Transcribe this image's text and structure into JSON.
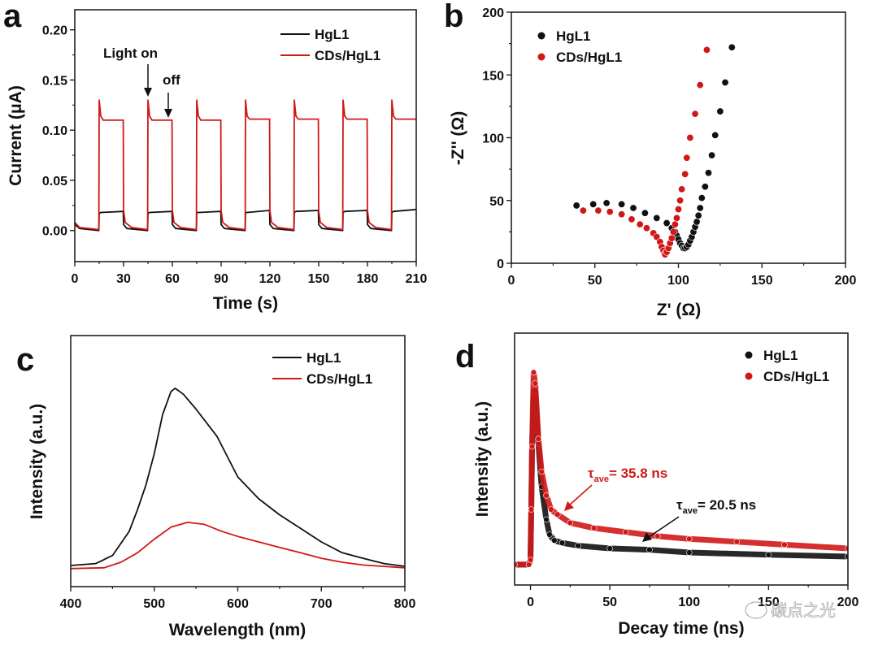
{
  "colors": {
    "hgl1": "#111111",
    "cds": "#d01818"
  },
  "watermark": "碳点之光",
  "chart_data": [
    {
      "panel": "a",
      "type": "line",
      "xlabel": "Time (s)",
      "ylabel": "Current (μA)",
      "xlim": [
        0,
        210
      ],
      "ylim": [
        -0.031,
        0.22
      ],
      "xticks": [
        0,
        30,
        60,
        90,
        120,
        150,
        180,
        210
      ],
      "xtick_labels": [
        "0",
        "30",
        "60",
        "90",
        "120",
        "150",
        "180",
        "210"
      ],
      "yticks": [
        0,
        0.05,
        0.1,
        0.15,
        0.2
      ],
      "ytick_labels": [
        "0.00",
        "0.05",
        "0.10",
        "0.15",
        "0.20"
      ],
      "legend_position": "top-right",
      "annotations": [
        {
          "text": "Light on",
          "x": 45
        },
        {
          "text": "off",
          "x": 60
        }
      ],
      "series": [
        {
          "name": "HgL1",
          "color": "#111111",
          "points": [
            [
              0,
              0.006
            ],
            [
              3,
              0.002
            ],
            [
              14.8,
              0
            ],
            [
              15,
              0.017
            ],
            [
              16,
              0.018
            ],
            [
              29.8,
              0.019
            ],
            [
              30,
              0.006
            ],
            [
              32,
              0.002
            ],
            [
              44.8,
              0
            ],
            [
              45,
              0.017
            ],
            [
              46,
              0.018
            ],
            [
              59.8,
              0.019
            ],
            [
              60,
              0.006
            ],
            [
              62,
              0.002
            ],
            [
              74.8,
              0
            ],
            [
              75,
              0.018
            ],
            [
              76,
              0.018
            ],
            [
              89.8,
              0.019
            ],
            [
              90,
              0.006
            ],
            [
              92,
              0.002
            ],
            [
              104.8,
              0
            ],
            [
              105,
              0.018
            ],
            [
              106,
              0.018
            ],
            [
              119.8,
              0.02
            ],
            [
              120,
              0.006
            ],
            [
              122,
              0.002
            ],
            [
              134.8,
              0
            ],
            [
              135,
              0.018
            ],
            [
              136,
              0.019
            ],
            [
              149.8,
              0.02
            ],
            [
              150,
              0.006
            ],
            [
              152,
              0.002
            ],
            [
              164.8,
              0
            ],
            [
              165,
              0.018
            ],
            [
              166,
              0.019
            ],
            [
              179.8,
              0.02
            ],
            [
              180,
              0.006
            ],
            [
              182,
              0.002
            ],
            [
              194.8,
              0
            ],
            [
              195,
              0.018
            ],
            [
              196,
              0.019
            ],
            [
              210,
              0.021
            ]
          ]
        },
        {
          "name": "CDs/HgL1",
          "color": "#d01818",
          "points": [
            [
              0,
              0.008
            ],
            [
              3,
              0.003
            ],
            [
              14.8,
              0.001
            ],
            [
              15,
              0.13
            ],
            [
              16,
              0.114
            ],
            [
              17.5,
              0.11
            ],
            [
              29.8,
              0.11
            ],
            [
              30,
              0.02
            ],
            [
              31,
              0.008
            ],
            [
              35,
              0.003
            ],
            [
              44.8,
              0.001
            ],
            [
              45,
              0.13
            ],
            [
              46,
              0.114
            ],
            [
              47.5,
              0.11
            ],
            [
              59.8,
              0.11
            ],
            [
              60,
              0.02
            ],
            [
              61,
              0.008
            ],
            [
              65,
              0.003
            ],
            [
              74.8,
              0.001
            ],
            [
              75,
              0.13
            ],
            [
              76,
              0.114
            ],
            [
              77.5,
              0.11
            ],
            [
              89.8,
              0.11
            ],
            [
              90,
              0.02
            ],
            [
              91,
              0.008
            ],
            [
              95,
              0.003
            ],
            [
              104.8,
              0.001
            ],
            [
              105,
              0.13
            ],
            [
              106,
              0.114
            ],
            [
              107.5,
              0.111
            ],
            [
              119.8,
              0.111
            ],
            [
              120,
              0.02
            ],
            [
              121,
              0.008
            ],
            [
              125,
              0.003
            ],
            [
              134.8,
              0.001
            ],
            [
              135,
              0.13
            ],
            [
              136,
              0.114
            ],
            [
              137.5,
              0.111
            ],
            [
              149.8,
              0.111
            ],
            [
              150,
              0.02
            ],
            [
              151,
              0.008
            ],
            [
              155,
              0.003
            ],
            [
              164.8,
              0.001
            ],
            [
              165,
              0.13
            ],
            [
              166,
              0.114
            ],
            [
              167.5,
              0.111
            ],
            [
              179.8,
              0.111
            ],
            [
              180,
              0.02
            ],
            [
              181,
              0.008
            ],
            [
              185,
              0.003
            ],
            [
              194.8,
              0.001
            ],
            [
              195,
              0.13
            ],
            [
              196,
              0.114
            ],
            [
              197.5,
              0.111
            ],
            [
              210,
              0.111
            ]
          ]
        }
      ]
    },
    {
      "panel": "b",
      "type": "scatter",
      "xlabel": "Z' (Ω)",
      "ylabel": "-Z'' (Ω)",
      "xlim": [
        0,
        200
      ],
      "ylim": [
        0,
        200
      ],
      "xticks": [
        0,
        50,
        100,
        150,
        200
      ],
      "xtick_labels": [
        "0",
        "50",
        "100",
        "150",
        "200"
      ],
      "yticks": [
        0,
        50,
        100,
        150,
        200
      ],
      "ytick_labels": [
        "0",
        "50",
        "100",
        "150",
        "200"
      ],
      "legend_position": "top-left",
      "series": [
        {
          "name": "HgL1",
          "color": "#111111",
          "points": [
            [
              39,
              46
            ],
            [
              49,
              47
            ],
            [
              57,
              48
            ],
            [
              66,
              47
            ],
            [
              73,
              44
            ],
            [
              80,
              40
            ],
            [
              87,
              36
            ],
            [
              93,
              32
            ],
            [
              96,
              28
            ],
            [
              98,
              25
            ],
            [
              99,
              22
            ],
            [
              100,
              19
            ],
            [
              101,
              16
            ],
            [
              102,
              14
            ],
            [
              103,
              12
            ],
            [
              104,
              12
            ],
            [
              105,
              13
            ],
            [
              106,
              15
            ],
            [
              107,
              18
            ],
            [
              108,
              21
            ],
            [
              109,
              25
            ],
            [
              110,
              29
            ],
            [
              111,
              33
            ],
            [
              112,
              38
            ],
            [
              113,
              44
            ],
            [
              114,
              52
            ],
            [
              116,
              61
            ],
            [
              118,
              72
            ],
            [
              120,
              86
            ],
            [
              122,
              102
            ],
            [
              125,
              121
            ],
            [
              128,
              144
            ],
            [
              132,
              172
            ]
          ]
        },
        {
          "name": "CDs/HgL1",
          "color": "#d01818",
          "points": [
            [
              43,
              42
            ],
            [
              52,
              42
            ],
            [
              59,
              41
            ],
            [
              66,
              39
            ],
            [
              72,
              35
            ],
            [
              77,
              31
            ],
            [
              81,
              28
            ],
            [
              85,
              24
            ],
            [
              87,
              21
            ],
            [
              89,
              17
            ],
            [
              90,
              13
            ],
            [
              91,
              10
            ],
            [
              92,
              8
            ],
            [
              92,
              7
            ],
            [
              93,
              9
            ],
            [
              94,
              12
            ],
            [
              95,
              16
            ],
            [
              96,
              20
            ],
            [
              97,
              25
            ],
            [
              98,
              31
            ],
            [
              99,
              36
            ],
            [
              100,
              43
            ],
            [
              101,
              50
            ],
            [
              102,
              59
            ],
            [
              104,
              71
            ],
            [
              105,
              84
            ],
            [
              107,
              100
            ],
            [
              110,
              119
            ],
            [
              113,
              142
            ],
            [
              117,
              170
            ]
          ]
        }
      ]
    },
    {
      "panel": "c",
      "type": "line",
      "xlabel": "Wavelength (nm)",
      "ylabel": "Intensity (a.u.)",
      "xlim": [
        400,
        800
      ],
      "ylim": [
        0,
        100
      ],
      "xticks": [
        400,
        500,
        600,
        700,
        800
      ],
      "xtick_labels": [
        "400",
        "500",
        "600",
        "700",
        "800"
      ],
      "yticks": [],
      "ytick_labels": [],
      "legend_position": "top-right",
      "series": [
        {
          "name": "HgL1",
          "color": "#111111",
          "points": [
            [
              400,
              8.4
            ],
            [
              430,
              9.2
            ],
            [
              450,
              12.4
            ],
            [
              470,
              22
            ],
            [
              480,
              30.7
            ],
            [
              490,
              40.5
            ],
            [
              500,
              53
            ],
            [
              510,
              68.5
            ],
            [
              520,
              77.7
            ],
            [
              525,
              79
            ],
            [
              535,
              76.6
            ],
            [
              550,
              70.7
            ],
            [
              575,
              59.9
            ],
            [
              600,
              43.7
            ],
            [
              625,
              35
            ],
            [
              650,
              28.6
            ],
            [
              675,
              23.2
            ],
            [
              700,
              17.8
            ],
            [
              725,
              13.5
            ],
            [
              750,
              11.3
            ],
            [
              775,
              9.2
            ],
            [
              800,
              8.1
            ]
          ]
        },
        {
          "name": "CDs/HgL1",
          "color": "#d01818",
          "points": [
            [
              400,
              7.2
            ],
            [
              440,
              7.5
            ],
            [
              460,
              9.7
            ],
            [
              480,
              13.5
            ],
            [
              500,
              18.9
            ],
            [
              520,
              23.7
            ],
            [
              540,
              25.6
            ],
            [
              560,
              24.8
            ],
            [
              580,
              22.1
            ],
            [
              600,
              20
            ],
            [
              625,
              17.8
            ],
            [
              650,
              15.6
            ],
            [
              675,
              13.5
            ],
            [
              700,
              11.3
            ],
            [
              725,
              9.7
            ],
            [
              750,
              8.6
            ],
            [
              800,
              7.5
            ]
          ]
        }
      ]
    },
    {
      "panel": "d",
      "type": "scatter",
      "xlabel": "Decay time (ns)",
      "ylabel": "Intensity (a.u.)",
      "xlim": [
        -10,
        200
      ],
      "ylim": [
        0,
        100
      ],
      "xticks": [
        0,
        50,
        100,
        150,
        200
      ],
      "xtick_labels": [
        "0",
        "50",
        "100",
        "150",
        "200"
      ],
      "yticks": [],
      "ytick_labels": [],
      "legend_position": "top-right",
      "annotations": [
        {
          "series": "CDs/HgL1",
          "symbol": "τ",
          "sub": "ave",
          "text": "= 35.8 ns"
        },
        {
          "series": "HgL1",
          "symbol": "τ",
          "sub": "ave",
          "text": "= 20.5 ns"
        }
      ],
      "series": [
        {
          "name": "HgL1",
          "color": "#111111",
          "points": [
            [
              -10,
              8.1
            ],
            [
              -1,
              8.1
            ],
            [
              0,
              10
            ],
            [
              0.5,
              30
            ],
            [
              1,
              55
            ],
            [
              2,
              77
            ],
            [
              3,
              77
            ],
            [
              5,
              56
            ],
            [
              7,
              39
            ],
            [
              10,
              26
            ],
            [
              12,
              20
            ],
            [
              15,
              17.7
            ],
            [
              20,
              16.7
            ],
            [
              30,
              15.6
            ],
            [
              50,
              14.5
            ],
            [
              75,
              14
            ],
            [
              100,
              12.9
            ],
            [
              150,
              12
            ],
            [
              200,
              11.3
            ]
          ]
        },
        {
          "name": "CDs/HgL1",
          "color": "#d01818",
          "points": [
            [
              -10,
              8.1
            ],
            [
              -1,
              8.1
            ],
            [
              0,
              10
            ],
            [
              0.5,
              30
            ],
            [
              1,
              55
            ],
            [
              2,
              84.4
            ],
            [
              3,
              80
            ],
            [
              5,
              58
            ],
            [
              7,
              45
            ],
            [
              10,
              35.5
            ],
            [
              13,
              30
            ],
            [
              17,
              28
            ],
            [
              25,
              24.7
            ],
            [
              40,
              22.6
            ],
            [
              60,
              21
            ],
            [
              80,
              19.4
            ],
            [
              100,
              18.3
            ],
            [
              130,
              17.2
            ],
            [
              160,
              16
            ],
            [
              200,
              14.5
            ]
          ]
        }
      ]
    }
  ]
}
